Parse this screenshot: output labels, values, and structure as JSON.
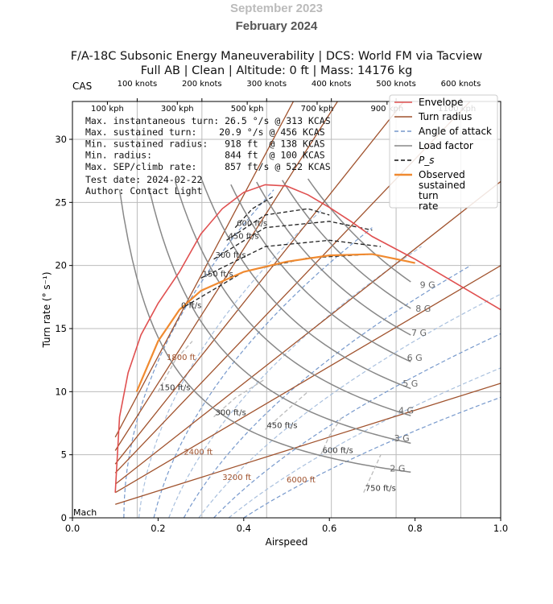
{
  "watermark": {
    "ghost": "September 2023",
    "month": "February 2024"
  },
  "title": {
    "line1": "F/A-18C Subsonic Energy Maneuverability | DCS: World FM via Tacview",
    "line2": "Full AB | Clean | Altitude: 0 ft | Mass: 14176 kg"
  },
  "stats": [
    "Max. instantaneous turn: 26.5 °/s @ 313 KCAS",
    "Max. sustained turn:    20.9 °/s @ 456 KCAS",
    "Min. sustained radius:   918 ft  @ 138 KCAS",
    "Min. radius:             844 ft  @ 100 KCAS",
    "Max. SEP/climb rate:     857 ft/s @ 522 KCAS",
    "Test date: 2024-02-22",
    "Author: Contact Light"
  ],
  "chart_data": {
    "type": "line",
    "xlabel": "Airspeed",
    "ylabel": "Turn rate (° s⁻¹)",
    "xlim": [
      0,
      1
    ],
    "ylim": [
      0,
      33
    ],
    "xticks": [
      "0.0",
      "0.2",
      "0.4",
      "0.6",
      "0.8",
      "1.0"
    ],
    "yticks": [
      "0",
      "5",
      "10",
      "15",
      "20",
      "25",
      "30"
    ],
    "x_secondary_label": "Mach",
    "top_axis_label": "CAS",
    "top_knots": [
      "100 knots",
      "200 knots",
      "300 knots",
      "400 knots",
      "500 knots",
      "600 knots"
    ],
    "top_kph": [
      "100 kph",
      "300 kph",
      "500 kph",
      "700 kph",
      "900 kph",
      "1100 kph"
    ],
    "grid": true,
    "legend_position": "top-right",
    "legend": [
      {
        "label": "Envelope",
        "color": "#e05050",
        "style": "solid"
      },
      {
        "label": "Turn radius",
        "color": "#a0522d",
        "style": "solid"
      },
      {
        "label": "Angle of attack",
        "color": "#7799cc",
        "style": "dashed"
      },
      {
        "label": "Load factor",
        "color": "#888888",
        "style": "solid"
      },
      {
        "label": "P_s",
        "color": "#111111",
        "style": "dashed"
      },
      {
        "label": "Observed sustained turn rate",
        "color": "#f08a30",
        "style": "solid"
      }
    ],
    "envelope": {
      "x": [
        0.1,
        0.11,
        0.13,
        0.16,
        0.2,
        0.25,
        0.3,
        0.35,
        0.4,
        0.45,
        0.5,
        0.55,
        0.6,
        0.65,
        0.7,
        0.8,
        0.9,
        1.0
      ],
      "y": [
        2,
        8,
        11.5,
        14.5,
        17,
        19.5,
        22.5,
        24.5,
        25.8,
        26.4,
        26.3,
        25.6,
        24.6,
        23.5,
        22.3,
        20.5,
        18.5,
        16.5
      ]
    },
    "observed_sustained": {
      "x": [
        0.15,
        0.2,
        0.25,
        0.3,
        0.4,
        0.5,
        0.6,
        0.7,
        0.8
      ],
      "y": [
        10,
        14,
        16.5,
        18,
        19.5,
        20.3,
        20.8,
        20.9,
        20.2
      ]
    },
    "load_factor_g": [
      2,
      3,
      4,
      5,
      6,
      7,
      8,
      9
    ],
    "turn_radius_ft": [
      1000,
      1200,
      1500,
      1800,
      2400,
      3200,
      6000
    ],
    "turn_radius_labels": [
      "1800 ft",
      "2400 ft",
      "3200 ft",
      "6000 ft"
    ],
    "ps_contours": [
      {
        "label": "600 ft/s",
        "x": [
          0.38,
          0.42,
          0.47
        ],
        "y": [
          23,
          24.5,
          25.5
        ]
      },
      {
        "label": "450 ft/s",
        "x": [
          0.36,
          0.45,
          0.55,
          0.6
        ],
        "y": [
          22,
          24,
          24.5,
          24
        ]
      },
      {
        "label": "300 ft/s",
        "x": [
          0.33,
          0.45,
          0.6,
          0.7
        ],
        "y": [
          20.5,
          23,
          23.5,
          22.8
        ]
      },
      {
        "label": "150 ft/s",
        "x": [
          0.3,
          0.45,
          0.6,
          0.72
        ],
        "y": [
          19,
          21.5,
          22,
          21.5
        ]
      },
      {
        "label": "0 ft/s",
        "x": [
          0.25,
          0.4,
          0.55,
          0.7,
          0.8
        ],
        "y": [
          16.5,
          19.5,
          20.6,
          20.9,
          20.2
        ]
      },
      {
        "label": "150 ft/s",
        "x": [
          0.2,
          0.24,
          0.28
        ],
        "y": [
          10,
          12.5,
          14
        ]
      },
      {
        "label": "300 ft/s",
        "x": [
          0.33,
          0.38,
          0.45
        ],
        "y": [
          8,
          9.5,
          11
        ]
      },
      {
        "label": "450 ft/s",
        "x": [
          0.45,
          0.5,
          0.55
        ],
        "y": [
          7,
          8.5,
          10
        ]
      },
      {
        "label": "600 ft/s",
        "x": [
          0.58,
          0.6,
          0.63
        ],
        "y": [
          5,
          6.5,
          8
        ]
      },
      {
        "label": "750 ft/s",
        "x": [
          0.68,
          0.7,
          0.72
        ],
        "y": [
          2,
          3.5,
          5
        ]
      }
    ]
  }
}
